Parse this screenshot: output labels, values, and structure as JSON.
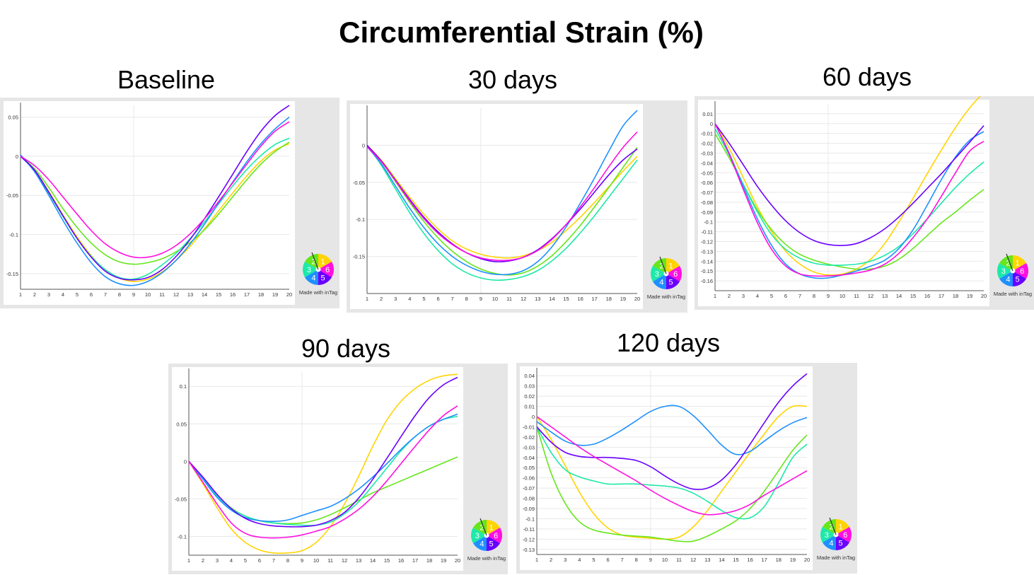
{
  "title": "Circumferential Strain (%)",
  "watermark": "Made with inTag",
  "wheel_segments": [
    {
      "label": "1",
      "color": "#FFD400"
    },
    {
      "label": "6",
      "color": "#FF10E0"
    },
    {
      "label": "5",
      "color": "#6A00FF"
    },
    {
      "label": "4",
      "color": "#1E90FF"
    },
    {
      "label": "3",
      "color": "#1DE9A8"
    },
    {
      "label": "2",
      "color": "#66E61C"
    }
  ],
  "series_colors": {
    "1": "#FFD400",
    "2": "#66E61C",
    "3": "#1DE9A8",
    "4": "#1E90FF",
    "5": "#6A00FF",
    "6": "#FF10E0"
  },
  "chart_data": [
    {
      "id": "baseline",
      "panel_title": "Baseline",
      "type": "line",
      "x": [
        1,
        2,
        3,
        4,
        5,
        6,
        7,
        8,
        9,
        10,
        11,
        12,
        13,
        14,
        15,
        16,
        17,
        18,
        19,
        20
      ],
      "xlabel": "",
      "ylabel": "",
      "ylim": [
        -0.17,
        0.065
      ],
      "yticks": [
        0.05,
        0,
        -0.05,
        -0.1,
        -0.15
      ],
      "ytick_labels": [
        "0.05",
        "0",
        "-0.05",
        "-0.1",
        "-0.15"
      ],
      "series": [
        {
          "name": "1",
          "values": [
            0,
            -0.018,
            -0.045,
            -0.075,
            -0.103,
            -0.127,
            -0.146,
            -0.156,
            -0.16,
            -0.157,
            -0.148,
            -0.133,
            -0.115,
            -0.093,
            -0.07,
            -0.047,
            -0.025,
            -0.006,
            0.008,
            0.016
          ]
        },
        {
          "name": "2",
          "values": [
            0,
            -0.016,
            -0.04,
            -0.067,
            -0.091,
            -0.111,
            -0.126,
            -0.135,
            -0.138,
            -0.136,
            -0.131,
            -0.122,
            -0.11,
            -0.094,
            -0.074,
            -0.052,
            -0.03,
            -0.01,
            0.006,
            0.018
          ]
        },
        {
          "name": "3",
          "values": [
            0,
            -0.019,
            -0.047,
            -0.077,
            -0.105,
            -0.128,
            -0.145,
            -0.155,
            -0.157,
            -0.151,
            -0.139,
            -0.124,
            -0.105,
            -0.084,
            -0.061,
            -0.038,
            -0.017,
            0.001,
            0.015,
            0.023
          ]
        },
        {
          "name": "4",
          "values": [
            0.002,
            -0.02,
            -0.05,
            -0.082,
            -0.111,
            -0.136,
            -0.154,
            -0.163,
            -0.165,
            -0.16,
            -0.149,
            -0.133,
            -0.112,
            -0.087,
            -0.06,
            -0.033,
            -0.007,
            0.016,
            0.035,
            0.05
          ]
        },
        {
          "name": "5",
          "values": [
            0,
            -0.018,
            -0.046,
            -0.076,
            -0.105,
            -0.129,
            -0.147,
            -0.156,
            -0.158,
            -0.155,
            -0.145,
            -0.128,
            -0.106,
            -0.08,
            -0.052,
            -0.023,
            0.006,
            0.032,
            0.052,
            0.065
          ]
        },
        {
          "name": "6",
          "values": [
            0,
            -0.012,
            -0.03,
            -0.052,
            -0.074,
            -0.095,
            -0.112,
            -0.123,
            -0.129,
            -0.129,
            -0.124,
            -0.114,
            -0.099,
            -0.08,
            -0.058,
            -0.034,
            -0.01,
            0.013,
            0.032,
            0.044
          ]
        }
      ]
    },
    {
      "id": "30days",
      "panel_title": "30 days",
      "type": "line",
      "x": [
        1,
        2,
        3,
        4,
        5,
        6,
        7,
        8,
        9,
        10,
        11,
        12,
        13,
        14,
        15,
        16,
        17,
        18,
        19,
        20
      ],
      "xlabel": "",
      "ylabel": "",
      "ylim": [
        -0.2,
        0.05
      ],
      "yticks": [
        0,
        -0.05,
        -0.1,
        -0.15
      ],
      "ytick_labels": [
        "0",
        "-0.05",
        "-0.1",
        "-0.15"
      ],
      "series": [
        {
          "name": "1",
          "values": [
            0,
            -0.02,
            -0.045,
            -0.07,
            -0.093,
            -0.113,
            -0.129,
            -0.14,
            -0.147,
            -0.151,
            -0.152,
            -0.149,
            -0.142,
            -0.131,
            -0.115,
            -0.097,
            -0.077,
            -0.056,
            -0.035,
            -0.015
          ]
        },
        {
          "name": "2",
          "values": [
            0,
            -0.022,
            -0.049,
            -0.077,
            -0.103,
            -0.125,
            -0.143,
            -0.157,
            -0.167,
            -0.173,
            -0.175,
            -0.172,
            -0.163,
            -0.149,
            -0.13,
            -0.108,
            -0.083,
            -0.057,
            -0.03,
            -0.003
          ]
        },
        {
          "name": "3",
          "values": [
            0,
            -0.027,
            -0.059,
            -0.091,
            -0.119,
            -0.142,
            -0.16,
            -0.172,
            -0.179,
            -0.182,
            -0.181,
            -0.177,
            -0.169,
            -0.156,
            -0.139,
            -0.118,
            -0.095,
            -0.07,
            -0.045,
            -0.02
          ]
        },
        {
          "name": "4",
          "values": [
            -0.002,
            -0.025,
            -0.055,
            -0.085,
            -0.111,
            -0.133,
            -0.15,
            -0.162,
            -0.17,
            -0.174,
            -0.174,
            -0.169,
            -0.157,
            -0.137,
            -0.11,
            -0.078,
            -0.044,
            -0.008,
            0.026,
            0.047
          ]
        },
        {
          "name": "5",
          "values": [
            0,
            -0.021,
            -0.047,
            -0.073,
            -0.097,
            -0.117,
            -0.133,
            -0.145,
            -0.153,
            -0.157,
            -0.156,
            -0.151,
            -0.141,
            -0.126,
            -0.107,
            -0.086,
            -0.063,
            -0.04,
            -0.02,
            -0.005
          ]
        },
        {
          "name": "6",
          "values": [
            -0.002,
            -0.022,
            -0.048,
            -0.075,
            -0.099,
            -0.119,
            -0.134,
            -0.145,
            -0.152,
            -0.155,
            -0.155,
            -0.151,
            -0.142,
            -0.127,
            -0.107,
            -0.083,
            -0.057,
            -0.029,
            -0.003,
            0.018
          ]
        }
      ]
    },
    {
      "id": "60days",
      "panel_title": "60 days",
      "type": "line",
      "x": [
        1,
        2,
        3,
        4,
        5,
        6,
        7,
        8,
        9,
        10,
        11,
        12,
        13,
        14,
        15,
        16,
        17,
        18,
        19,
        20
      ],
      "xlabel": "",
      "ylabel": "",
      "ylim": [
        -0.17,
        0.02
      ],
      "yticks": [
        0.01,
        0,
        -0.01,
        -0.02,
        -0.03,
        -0.04,
        -0.05,
        -0.06,
        -0.07,
        -0.08,
        -0.09,
        -0.1,
        -0.11,
        -0.12,
        -0.13,
        -0.14,
        -0.15,
        -0.16
      ],
      "ytick_labels": [
        "0.01",
        "0",
        "-0.01",
        "-0.02",
        "-0.03",
        "-0.04",
        "-0.05",
        "-0.06",
        "-0.07",
        "-0.08",
        "-0.09",
        "-0.1",
        "-0.11",
        "-0.12",
        "-0.13",
        "-0.14",
        "-0.15",
        "-0.16"
      ],
      "series": [
        {
          "name": "1",
          "values": [
            0,
            -0.025,
            -0.055,
            -0.085,
            -0.11,
            -0.13,
            -0.143,
            -0.151,
            -0.154,
            -0.153,
            -0.148,
            -0.138,
            -0.122,
            -0.1,
            -0.076,
            -0.051,
            -0.027,
            -0.004,
            0.016,
            0.032
          ]
        },
        {
          "name": "2",
          "values": [
            -0.01,
            -0.035,
            -0.062,
            -0.088,
            -0.108,
            -0.123,
            -0.133,
            -0.139,
            -0.143,
            -0.146,
            -0.148,
            -0.148,
            -0.145,
            -0.138,
            -0.127,
            -0.114,
            -0.101,
            -0.09,
            -0.078,
            -0.067
          ]
        },
        {
          "name": "3",
          "values": [
            -0.005,
            -0.032,
            -0.062,
            -0.09,
            -0.113,
            -0.128,
            -0.137,
            -0.142,
            -0.144,
            -0.144,
            -0.143,
            -0.14,
            -0.134,
            -0.125,
            -0.112,
            -0.097,
            -0.081,
            -0.065,
            -0.051,
            -0.039
          ]
        },
        {
          "name": "4",
          "values": [
            0,
            -0.03,
            -0.064,
            -0.097,
            -0.124,
            -0.143,
            -0.153,
            -0.157,
            -0.157,
            -0.154,
            -0.15,
            -0.145,
            -0.139,
            -0.127,
            -0.108,
            -0.083,
            -0.057,
            -0.034,
            -0.017,
            -0.008
          ]
        },
        {
          "name": "5",
          "values": [
            0,
            -0.02,
            -0.042,
            -0.064,
            -0.083,
            -0.099,
            -0.111,
            -0.119,
            -0.123,
            -0.124,
            -0.122,
            -0.116,
            -0.107,
            -0.095,
            -0.081,
            -0.066,
            -0.051,
            -0.035,
            -0.019,
            -0.002
          ]
        },
        {
          "name": "6",
          "values": [
            0,
            -0.031,
            -0.067,
            -0.101,
            -0.128,
            -0.145,
            -0.153,
            -0.155,
            -0.155,
            -0.154,
            -0.152,
            -0.149,
            -0.143,
            -0.132,
            -0.116,
            -0.097,
            -0.074,
            -0.05,
            -0.028,
            -0.018
          ]
        }
      ]
    },
    {
      "id": "90days",
      "panel_title": "90 days",
      "type": "line",
      "x": [
        1,
        2,
        3,
        4,
        5,
        6,
        7,
        8,
        9,
        10,
        11,
        12,
        13,
        14,
        15,
        16,
        17,
        18,
        19,
        20
      ],
      "xlabel": "",
      "ylabel": "",
      "ylim": [
        -0.125,
        0.12
      ],
      "yticks": [
        0.1,
        0.05,
        0,
        -0.05,
        -0.1
      ],
      "ytick_labels": [
        "0.1",
        "0.05",
        "0",
        "-0.05",
        "-0.1"
      ],
      "series": [
        {
          "name": "1",
          "values": [
            0,
            -0.03,
            -0.062,
            -0.09,
            -0.108,
            -0.118,
            -0.122,
            -0.122,
            -0.119,
            -0.108,
            -0.087,
            -0.057,
            -0.02,
            0.02,
            0.055,
            0.08,
            0.097,
            0.108,
            0.114,
            0.116
          ]
        },
        {
          "name": "2",
          "values": [
            0,
            -0.022,
            -0.045,
            -0.062,
            -0.073,
            -0.079,
            -0.082,
            -0.083,
            -0.082,
            -0.078,
            -0.071,
            -0.062,
            -0.052,
            -0.042,
            -0.034,
            -0.026,
            -0.018,
            -0.01,
            -0.002,
            0.006
          ]
        },
        {
          "name": "3",
          "values": [
            0,
            -0.023,
            -0.046,
            -0.063,
            -0.073,
            -0.079,
            -0.082,
            -0.084,
            -0.085,
            -0.085,
            -0.081,
            -0.07,
            -0.054,
            -0.032,
            -0.009,
            0.014,
            0.033,
            0.047,
            0.056,
            0.06
          ]
        },
        {
          "name": "4",
          "values": [
            0,
            -0.024,
            -0.048,
            -0.065,
            -0.075,
            -0.079,
            -0.08,
            -0.078,
            -0.072,
            -0.066,
            -0.06,
            -0.05,
            -0.037,
            -0.021,
            -0.003,
            0.016,
            0.033,
            0.047,
            0.056,
            0.063
          ]
        },
        {
          "name": "5",
          "values": [
            0,
            -0.021,
            -0.044,
            -0.063,
            -0.076,
            -0.083,
            -0.086,
            -0.087,
            -0.087,
            -0.085,
            -0.079,
            -0.068,
            -0.049,
            -0.024,
            0.004,
            0.033,
            0.061,
            0.085,
            0.102,
            0.112
          ]
        },
        {
          "name": "6",
          "values": [
            0,
            -0.028,
            -0.057,
            -0.082,
            -0.096,
            -0.101,
            -0.102,
            -0.101,
            -0.098,
            -0.093,
            -0.087,
            -0.077,
            -0.064,
            -0.047,
            -0.026,
            -0.003,
            0.02,
            0.042,
            0.061,
            0.074
          ]
        }
      ]
    },
    {
      "id": "120days",
      "panel_title": "120 days",
      "type": "line",
      "x": [
        1,
        2,
        3,
        4,
        5,
        6,
        7,
        8,
        9,
        10,
        11,
        12,
        13,
        14,
        15,
        16,
        17,
        18,
        19,
        20
      ],
      "xlabel": "",
      "ylabel": "",
      "ylim": [
        -0.135,
        0.045
      ],
      "yticks": [
        0.04,
        0.03,
        0.02,
        0.01,
        0,
        -0.01,
        -0.02,
        -0.03,
        -0.04,
        -0.05,
        -0.06,
        -0.07,
        -0.08,
        -0.09,
        -0.1,
        -0.11,
        -0.12,
        -0.13
      ],
      "ytick_labels": [
        "0.04",
        "0.03",
        "0.02",
        "0.01",
        "0",
        "-0.01",
        "-0.02",
        "-0.03",
        "-0.04",
        "-0.05",
        "-0.06",
        "-0.07",
        "-0.08",
        "-0.09",
        "-0.1",
        "-0.11",
        "-0.12",
        "-0.13"
      ],
      "series": [
        {
          "name": "1",
          "values": [
            0,
            -0.022,
            -0.048,
            -0.074,
            -0.095,
            -0.109,
            -0.116,
            -0.118,
            -0.119,
            -0.12,
            -0.118,
            -0.108,
            -0.092,
            -0.073,
            -0.054,
            -0.035,
            -0.017,
            0,
            0.01,
            0.01
          ]
        },
        {
          "name": "2",
          "values": [
            -0.01,
            -0.055,
            -0.085,
            -0.103,
            -0.111,
            -0.114,
            -0.116,
            -0.117,
            -0.118,
            -0.12,
            -0.122,
            -0.122,
            -0.117,
            -0.11,
            -0.102,
            -0.09,
            -0.073,
            -0.053,
            -0.033,
            -0.018
          ]
        },
        {
          "name": "3",
          "values": [
            -0.01,
            -0.035,
            -0.052,
            -0.059,
            -0.063,
            -0.066,
            -0.066,
            -0.066,
            -0.067,
            -0.068,
            -0.07,
            -0.075,
            -0.083,
            -0.092,
            -0.099,
            -0.099,
            -0.088,
            -0.065,
            -0.04,
            -0.027
          ]
        },
        {
          "name": "4",
          "values": [
            -0.005,
            -0.015,
            -0.024,
            -0.028,
            -0.027,
            -0.021,
            -0.013,
            -0.004,
            0.005,
            0.01,
            0.01,
            0.001,
            -0.013,
            -0.028,
            -0.037,
            -0.034,
            -0.024,
            -0.014,
            -0.006,
            -0.001
          ]
        },
        {
          "name": "5",
          "values": [
            -0.01,
            -0.025,
            -0.035,
            -0.039,
            -0.04,
            -0.04,
            -0.041,
            -0.043,
            -0.049,
            -0.058,
            -0.066,
            -0.071,
            -0.07,
            -0.062,
            -0.047,
            -0.027,
            -0.006,
            0.014,
            0.03,
            0.042
          ]
        },
        {
          "name": "6",
          "values": [
            0,
            -0.01,
            -0.02,
            -0.03,
            -0.039,
            -0.047,
            -0.055,
            -0.063,
            -0.072,
            -0.08,
            -0.087,
            -0.093,
            -0.096,
            -0.095,
            -0.092,
            -0.086,
            -0.077,
            -0.069,
            -0.061,
            -0.053
          ]
        }
      ]
    }
  ]
}
